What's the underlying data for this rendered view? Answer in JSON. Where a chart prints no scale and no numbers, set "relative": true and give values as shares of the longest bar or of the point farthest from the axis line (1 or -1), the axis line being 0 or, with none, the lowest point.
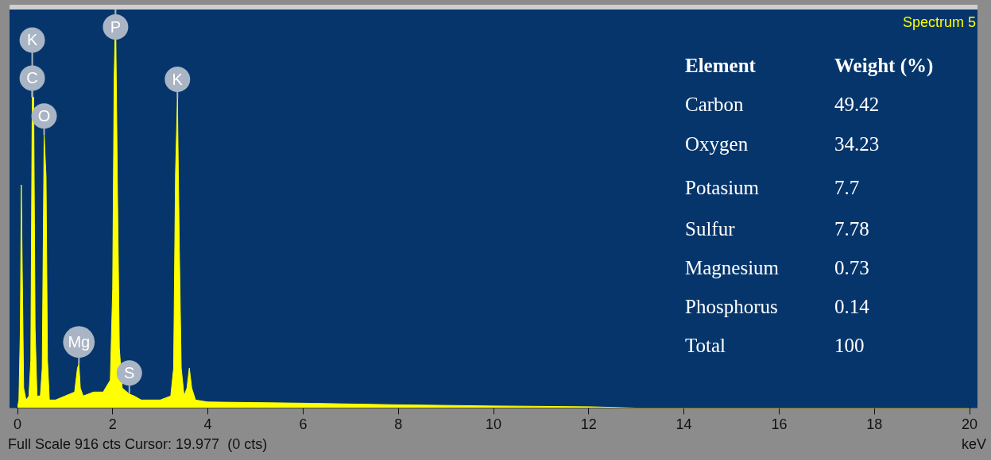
{
  "chart_data": {
    "type": "area",
    "title": "Spectrum 5",
    "xlabel": "keV",
    "relative": true,
    "xlim": [
      0,
      20
    ],
    "xticks": [
      0,
      2,
      4,
      6,
      8,
      10,
      12,
      14,
      16,
      18,
      20
    ],
    "x": [
      0,
      0.03,
      0.06,
      0.08,
      0.1,
      0.13,
      0.18,
      0.24,
      0.28,
      0.31,
      0.34,
      0.37,
      0.41,
      0.48,
      0.52,
      0.56,
      0.6,
      0.63,
      0.67,
      0.8,
      1.0,
      1.2,
      1.26,
      1.29,
      1.32,
      1.38,
      1.6,
      1.8,
      1.95,
      2.0,
      2.03,
      2.06,
      2.1,
      2.14,
      2.2,
      2.3,
      2.35,
      2.45,
      2.6,
      3.0,
      3.22,
      3.28,
      3.32,
      3.36,
      3.4,
      3.44,
      3.5,
      3.56,
      3.61,
      3.66,
      3.74,
      4,
      6,
      8,
      10,
      12,
      13,
      20
    ],
    "series": [
      {
        "color": "#ffff00",
        "values": [
          0,
          0.02,
          0.2,
          0.56,
          0.35,
          0.05,
          0.02,
          0.03,
          0.12,
          0.78,
          0.78,
          0.2,
          0.03,
          0.03,
          0.1,
          0.685,
          0.58,
          0.12,
          0.02,
          0.02,
          0.03,
          0.04,
          0.1,
          0.11,
          0.05,
          0.03,
          0.04,
          0.04,
          0.07,
          0.3,
          0.82,
          1,
          0.55,
          0.15,
          0.05,
          0.04,
          0.035,
          0.03,
          0.02,
          0.02,
          0.03,
          0.1,
          0.59,
          0.777,
          0.4,
          0.1,
          0.03,
          0.05,
          0.1,
          0.05,
          0.02,
          0.015,
          0.012,
          0.008,
          0.005,
          0.003,
          0,
          0
        ]
      }
    ],
    "annotations": [
      {
        "text": "C",
        "x": 0.31,
        "y": 0.78
      },
      {
        "text": "K",
        "x": 0.31,
        "y": 0.78
      },
      {
        "text": "O",
        "x": 0.56,
        "y": 0.685
      },
      {
        "text": "Mg",
        "x": 1.29,
        "y": 0.11
      },
      {
        "text": "P",
        "x": 2.06,
        "y": 1
      },
      {
        "text": "S",
        "x": 2.35,
        "y": 0.035
      },
      {
        "text": "K",
        "x": 3.36,
        "y": 0.777
      },
      "Element",
      "Weight (%)",
      "Carbon",
      "49.42",
      "Oxygen",
      "34.23",
      "Potasium",
      "7.7",
      "Sulfur",
      "7.78",
      "Magnesium",
      "0.73",
      "Phosphorus",
      "0.14",
      "Total",
      "100",
      "Full Scale 916 cts Cursor: 19.977  (0 cts)"
    ]
  }
}
